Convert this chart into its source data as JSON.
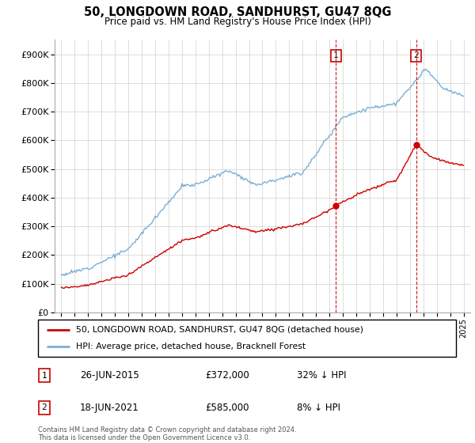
{
  "title": "50, LONGDOWN ROAD, SANDHURST, GU47 8QG",
  "subtitle": "Price paid vs. HM Land Registry's House Price Index (HPI)",
  "ylabel_ticks": [
    "£0",
    "£100K",
    "£200K",
    "£300K",
    "£400K",
    "£500K",
    "£600K",
    "£700K",
    "£800K",
    "£900K"
  ],
  "ytick_values": [
    0,
    100000,
    200000,
    300000,
    400000,
    500000,
    600000,
    700000,
    800000,
    900000
  ],
  "ylim": [
    0,
    950000
  ],
  "xlim_start": 1994.5,
  "xlim_end": 2025.5,
  "hpi_color": "#7bafd4",
  "price_color": "#cc0000",
  "sale1_date": "26-JUN-2015",
  "sale1_price": 372000,
  "sale1_label": "32% ↓ HPI",
  "sale2_date": "18-JUN-2021",
  "sale2_price": 585000,
  "sale2_label": "8% ↓ HPI",
  "legend_line1": "50, LONGDOWN ROAD, SANDHURST, GU47 8QG (detached house)",
  "legend_line2": "HPI: Average price, detached house, Bracknell Forest",
  "footer": "Contains HM Land Registry data © Crown copyright and database right 2024.\nThis data is licensed under the Open Government Licence v3.0.",
  "dashed_color": "#cc0000",
  "sale1_x_year": 2015.486,
  "sale2_x_year": 2021.461
}
